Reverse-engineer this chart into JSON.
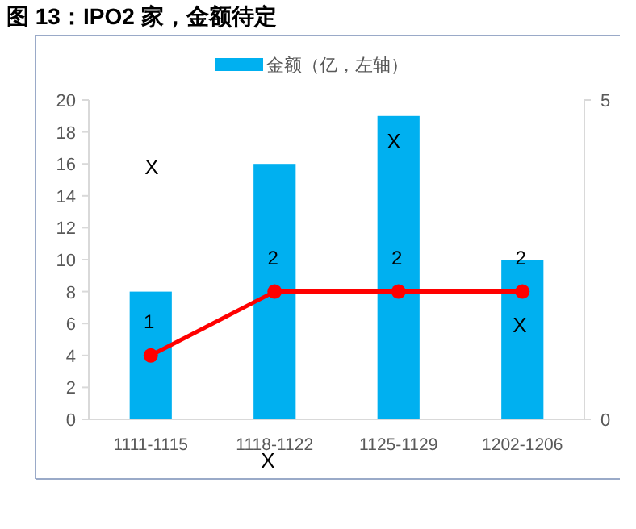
{
  "chart_data": {
    "type": "bar",
    "title": "图 13：IPO2 家，金额待定",
    "categories": [
      "1111-1115",
      "1118-1122",
      "1125-1129",
      "1202-1206"
    ],
    "series": [
      {
        "name": "金额（亿，左轴）",
        "color": "#00b0f0",
        "values": [
          8,
          16,
          19,
          10
        ]
      },
      {
        "type": "line",
        "axis": "y2",
        "color": "#ff0000",
        "marker": "circle",
        "data_labels": true,
        "values": [
          1,
          2,
          2,
          2
        ]
      }
    ],
    "ylim": [
      0,
      20
    ],
    "yticks": [
      0,
      2,
      4,
      6,
      8,
      10,
      12,
      14,
      16,
      18,
      20
    ],
    "y2lim": [
      0,
      5
    ],
    "y2ticks": [
      0,
      5
    ],
    "legend": "top",
    "grid": false,
    "annotations": [
      "X",
      "X",
      "X",
      "X"
    ]
  }
}
